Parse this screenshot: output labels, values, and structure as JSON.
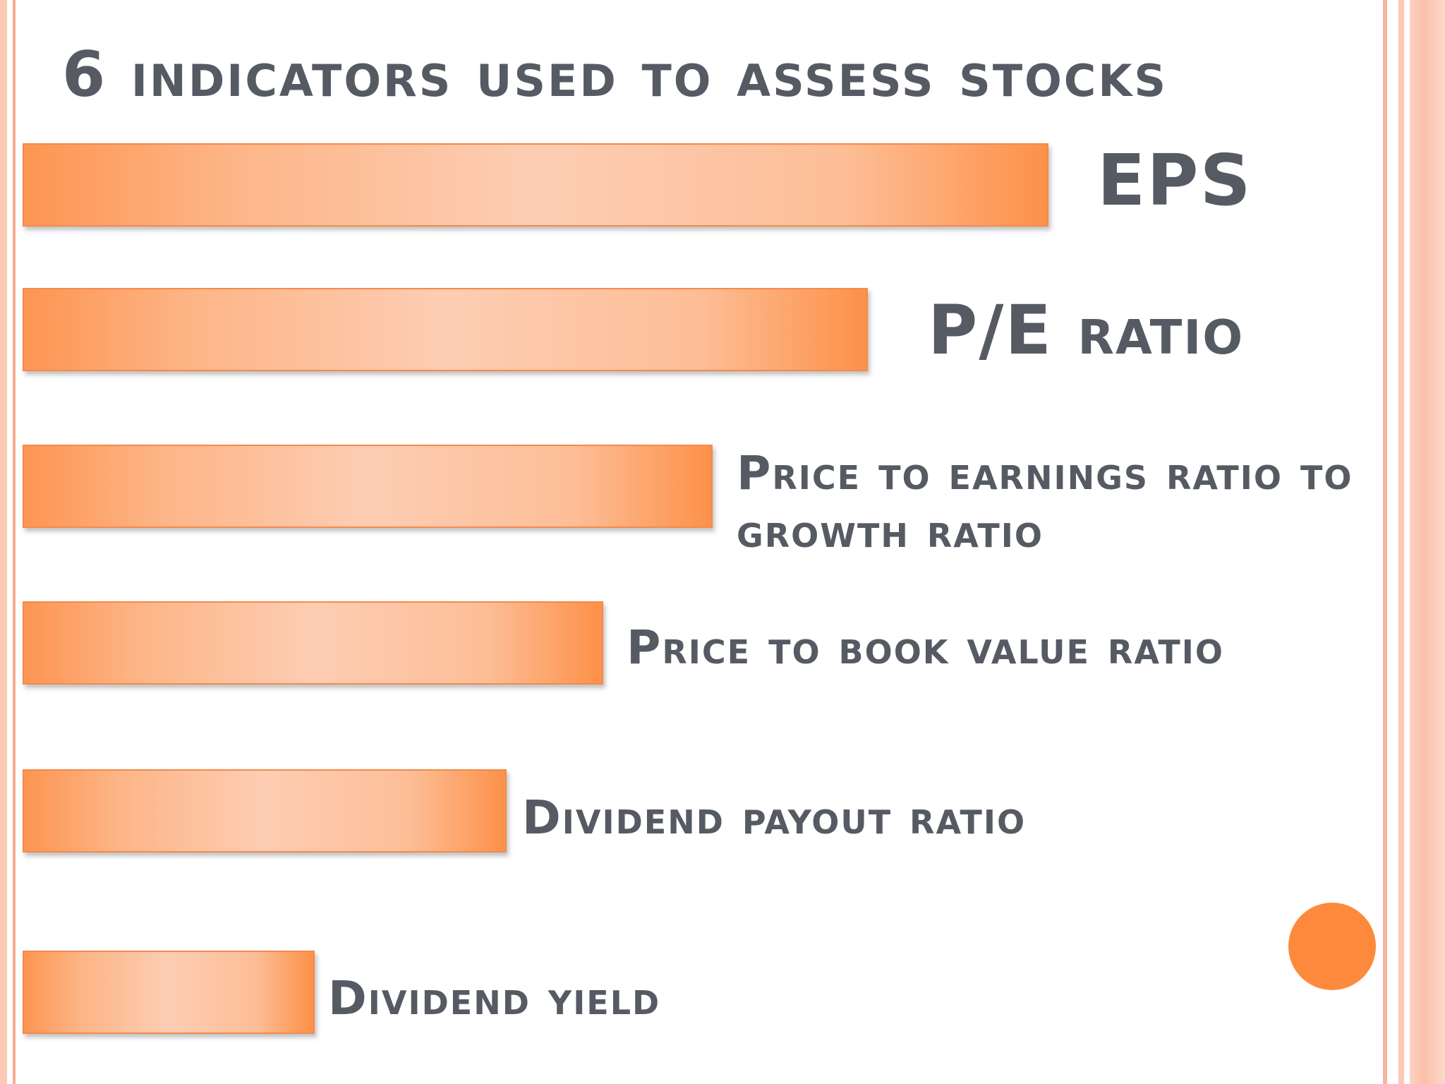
{
  "slide": {
    "title": "6 indicators used to assess stocks",
    "indicators": [
      {
        "label": "EPS"
      },
      {
        "label": "P/E ratio"
      },
      {
        "label": "Price to earnings ratio to growth ratio"
      },
      {
        "label": "Price to book value ratio"
      },
      {
        "label": "Dividend payout ratio"
      },
      {
        "label": "Dividend yield"
      }
    ]
  },
  "colors": {
    "bar_edge": "#fd9149",
    "bar_center": "#fdcdb3",
    "bar_border": "#f58a4c",
    "text": "#565a63",
    "accent_circle": "#fd8a3c",
    "frame": "#fbc9b6"
  }
}
